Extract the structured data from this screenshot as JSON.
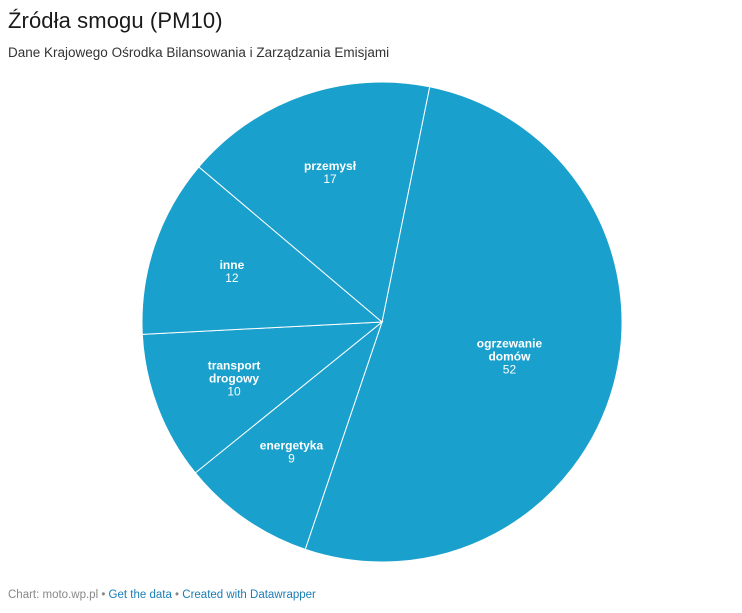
{
  "chart_data": {
    "type": "pie",
    "title": "Źródła smogu (PM10)",
    "subtitle": "Dane Krajowego Ośrodka Bilansowania i Zarządzania Emisjami",
    "color": "#1aa0cc",
    "stroke_color": "#ffffff",
    "slices": [
      {
        "label_lines": [
          "ogrzewanie",
          "domów"
        ],
        "value": 52
      },
      {
        "label_lines": [
          "energetyka"
        ],
        "value": 9
      },
      {
        "label_lines": [
          "transport",
          "drogowy"
        ],
        "value": 10
      },
      {
        "label_lines": [
          "inne"
        ],
        "value": 12
      },
      {
        "label_lines": [
          "przemysł"
        ],
        "value": 17
      }
    ]
  },
  "footer": {
    "source": "Chart: moto.wp.pl",
    "sep1": " • ",
    "get_data": "Get the data",
    "sep2": " • ",
    "created_with": "Created with Datawrapper"
  }
}
